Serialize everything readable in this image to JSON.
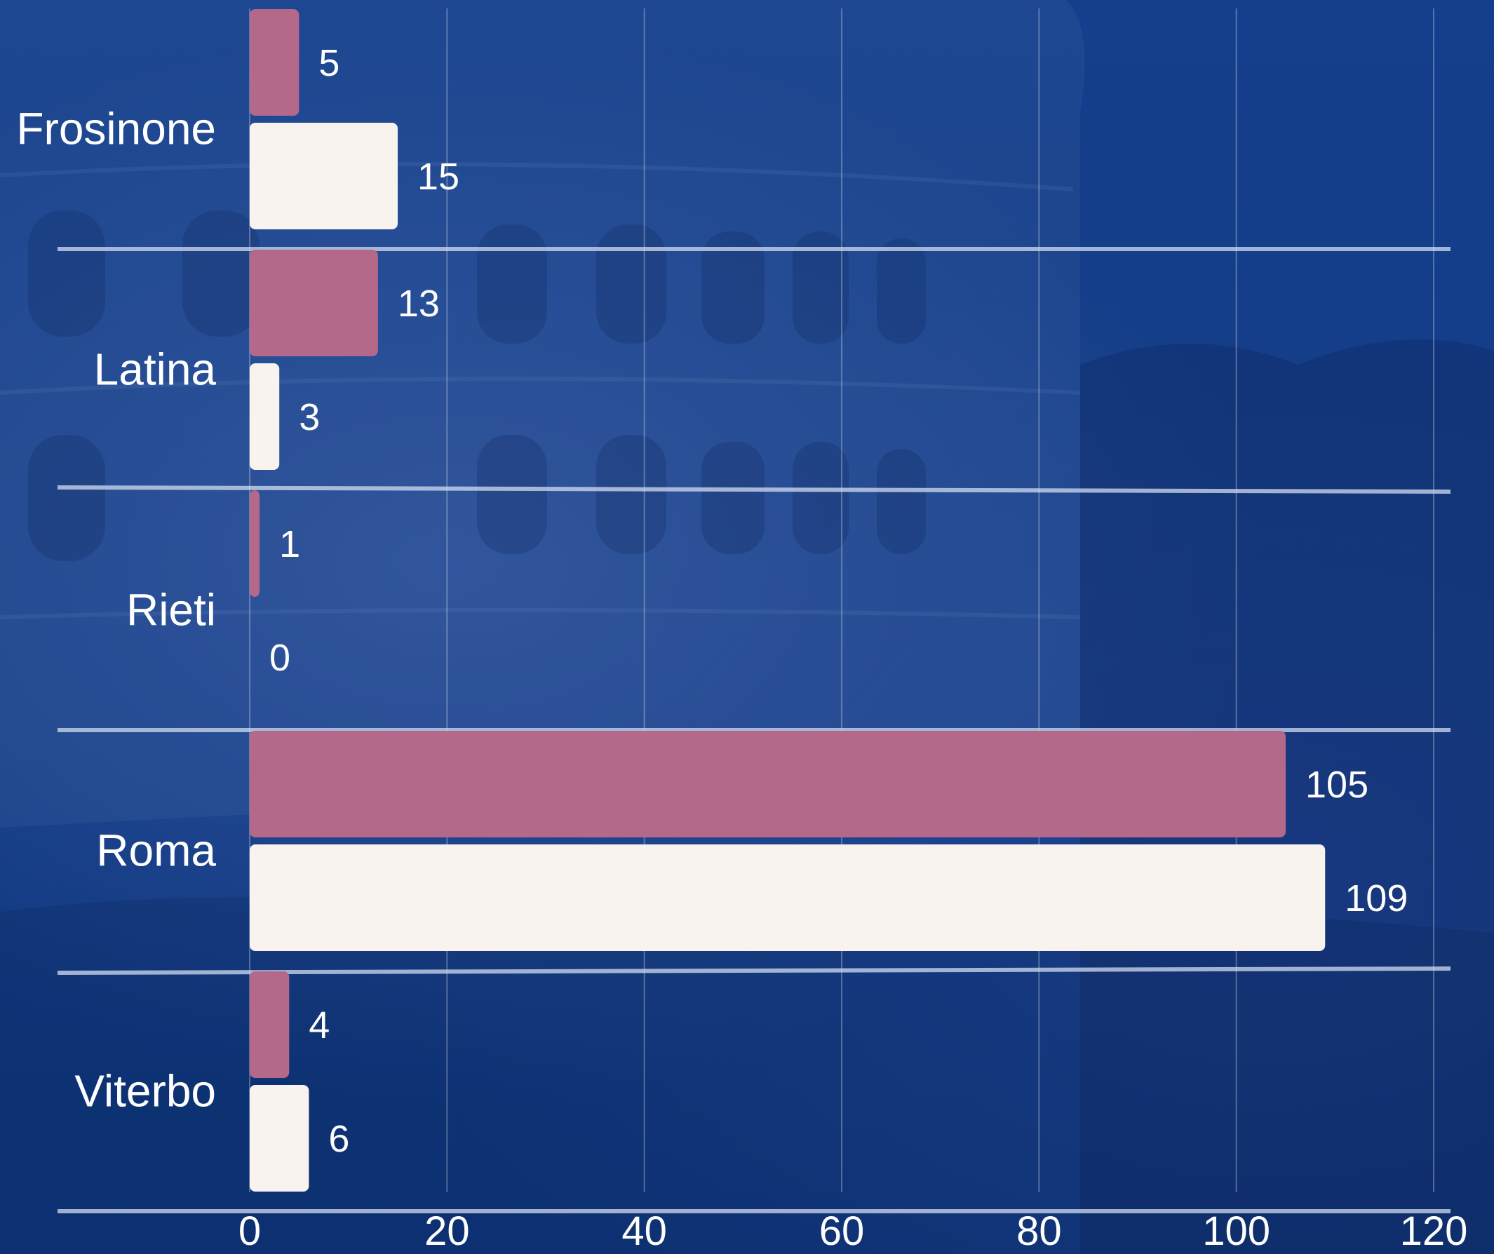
{
  "chart_data": {
    "type": "bar",
    "orientation": "horizontal",
    "categories": [
      "Frosinone",
      "Latina",
      "Rieti",
      "Roma",
      "Viterbo"
    ],
    "series": [
      {
        "values": [
          5,
          13,
          1,
          105,
          4
        ],
        "color": "#b5698a"
      },
      {
        "values": [
          15,
          3,
          0,
          109,
          6
        ],
        "color": "#f8f3ef"
      }
    ],
    "xlim": [
      0,
      120
    ],
    "xticks": [
      "0",
      "20",
      "40",
      "60",
      "80",
      "100",
      "120"
    ],
    "grid": true,
    "legend": "none",
    "title": "",
    "xlabel": "",
    "ylabel": ""
  },
  "background": {
    "base_color": "#123b84",
    "grid_color": "#ffffff",
    "separator_color": "#d2dcf0"
  }
}
